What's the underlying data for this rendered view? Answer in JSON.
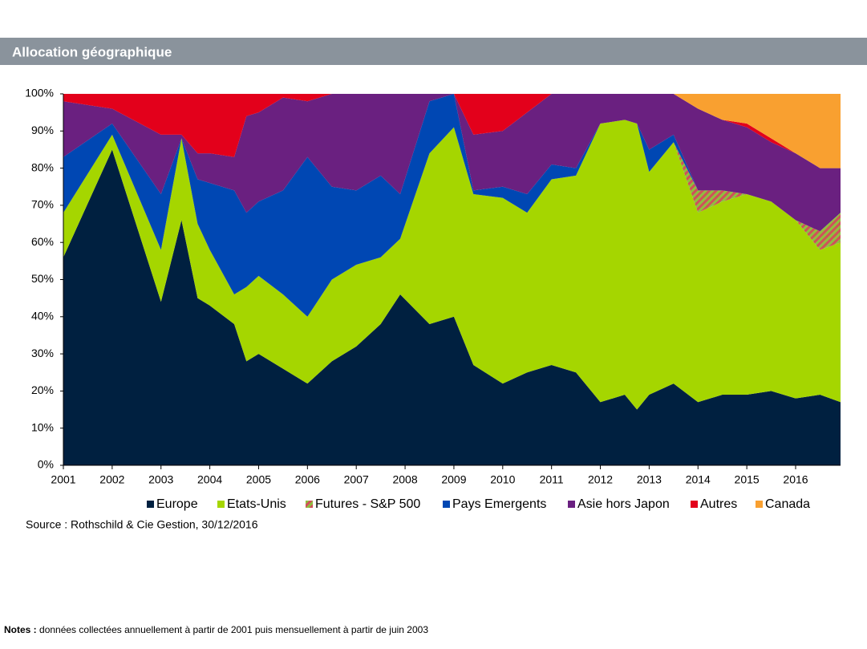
{
  "chart_data": {
    "type": "stacked-area",
    "title": "Allocation géographique",
    "x": [
      2001,
      2002,
      2003,
      2003.42,
      2003.75,
      2004,
      2004.5,
      2004.75,
      2005,
      2005.5,
      2006,
      2006.5,
      2007,
      2007.5,
      2007.9,
      2008.5,
      2009,
      2009.4,
      2010,
      2010.5,
      2011,
      2011.5,
      2012,
      2012.5,
      2012.75,
      2013,
      2013.5,
      2014,
      2014.5,
      2015,
      2015.5,
      2016,
      2016.5,
      2016.92
    ],
    "series": [
      {
        "name": "Europe",
        "color": "#002040",
        "values": [
          56,
          85,
          44,
          66,
          45,
          43,
          38,
          28,
          30,
          26,
          22,
          28,
          32,
          38,
          46,
          38,
          40,
          27,
          22,
          25,
          27,
          25,
          17,
          19,
          15,
          19,
          22,
          17,
          19,
          19,
          20,
          18,
          19,
          17
        ]
      },
      {
        "name": "Etats-Unis",
        "color": "#a5d600",
        "values": [
          12,
          4,
          14,
          22,
          20,
          15,
          8,
          20,
          21,
          20,
          18,
          22,
          22,
          18,
          15,
          46,
          51,
          46,
          50,
          43,
          50,
          53,
          75,
          74,
          77,
          60,
          65,
          51,
          52,
          54,
          51,
          48,
          39,
          43
        ]
      },
      {
        "name": "Futures - S&P 500",
        "color": "#d0505a",
        "hatch": "#8fbf3f",
        "values": [
          0,
          0,
          0,
          0,
          0,
          0,
          0,
          0,
          0,
          0,
          0,
          0,
          0,
          0,
          0,
          0,
          0,
          0,
          0,
          0,
          0,
          0,
          0,
          0,
          0,
          0,
          0,
          6,
          3,
          0,
          0,
          0,
          5,
          8
        ]
      },
      {
        "name": "Pays Emergents",
        "color": "#0047b3",
        "values": [
          15,
          3,
          15,
          0,
          12,
          18,
          28,
          20,
          20,
          28,
          43,
          25,
          20,
          22,
          12,
          14,
          9,
          1,
          3,
          5,
          4,
          2,
          0,
          0,
          0,
          6,
          2,
          0,
          0,
          0,
          0,
          0,
          0,
          0
        ]
      },
      {
        "name": "Asie hors Japon",
        "color": "#6a2080",
        "values": [
          15,
          4,
          16,
          1,
          7,
          8,
          9,
          26,
          24,
          25,
          15,
          25,
          26,
          22,
          27,
          2,
          0,
          15,
          15,
          22,
          19,
          20,
          8,
          7,
          8,
          15,
          11,
          22,
          19,
          18,
          16,
          18,
          17,
          12
        ]
      },
      {
        "name": "Autres",
        "color": "#e3001b",
        "values": [
          2,
          4,
          11,
          11,
          16,
          16,
          17,
          6,
          5,
          1,
          2,
          0,
          0,
          0,
          0,
          0,
          0,
          11,
          10,
          5,
          0,
          0,
          0,
          0,
          0,
          0,
          0,
          0,
          0,
          1,
          1,
          0,
          0,
          0
        ]
      },
      {
        "name": "Canada",
        "color": "#f9a030",
        "values": [
          0,
          0,
          0,
          0,
          0,
          0,
          0,
          0,
          0,
          0,
          0,
          0,
          0,
          0,
          0,
          0,
          0,
          0,
          0,
          0,
          0,
          0,
          0,
          0,
          0,
          0,
          0,
          4,
          7,
          8,
          12,
          16,
          20,
          20
        ]
      }
    ],
    "xlim": [
      2001,
      2016.92
    ],
    "xticks": [
      2001,
      2002,
      2003,
      2004,
      2005,
      2006,
      2007,
      2008,
      2009,
      2010,
      2011,
      2012,
      2013,
      2014,
      2015,
      2016
    ],
    "ylim": [
      0,
      100
    ],
    "yticks": [
      {
        "value": 0,
        "label": "0%"
      },
      {
        "value": 10,
        "label": "10%"
      },
      {
        "value": 20,
        "label": "20%"
      },
      {
        "value": 30,
        "label": "30%"
      },
      {
        "value": 40,
        "label": "40%"
      },
      {
        "value": 50,
        "label": "50%"
      },
      {
        "value": 60,
        "label": "60%"
      },
      {
        "value": 70,
        "label": "70%"
      },
      {
        "value": 80,
        "label": "80%"
      },
      {
        "value": 90,
        "label": "90%"
      },
      {
        "value": 100,
        "label": "100%"
      }
    ],
    "grid": false,
    "legend": "bottom",
    "source": "Source : Rothschild & Cie Gestion, 30/12/2016"
  },
  "notes": {
    "label": "Notes :",
    "text": "données collectées annuellement à partir de 2001 puis mensuellement à partir de juin 2003"
  }
}
